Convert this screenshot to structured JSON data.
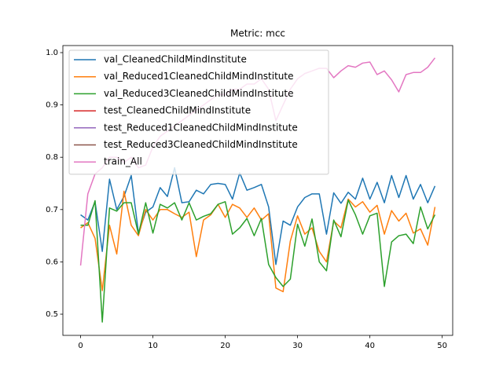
{
  "chart_data": {
    "type": "line",
    "title": "Metric: mcc",
    "x": [
      0,
      1,
      2,
      3,
      4,
      5,
      6,
      7,
      8,
      9,
      10,
      11,
      12,
      13,
      14,
      15,
      16,
      17,
      18,
      19,
      20,
      21,
      22,
      23,
      24,
      25,
      26,
      27,
      28,
      29,
      30,
      31,
      32,
      33,
      34,
      35,
      36,
      37,
      38,
      39,
      40,
      41,
      42,
      43,
      44,
      45,
      46,
      47,
      48,
      49
    ],
    "series": [
      {
        "name": "val_CleanedChildMindInstitute",
        "color": "#1f77b4",
        "values": [
          0.69,
          0.68,
          0.715,
          0.62,
          0.758,
          0.7,
          0.725,
          0.765,
          0.655,
          0.695,
          0.705,
          0.742,
          0.725,
          0.78,
          0.713,
          0.715,
          0.737,
          0.73,
          0.748,
          0.75,
          0.748,
          0.72,
          0.77,
          0.737,
          0.742,
          0.748,
          0.705,
          0.595,
          0.678,
          0.67,
          0.705,
          0.723,
          0.73,
          0.73,
          0.653,
          0.732,
          0.712,
          0.733,
          0.72,
          0.76,
          0.72,
          0.752,
          0.713,
          0.765,
          0.723,
          0.765,
          0.72,
          0.748,
          0.713,
          0.745
        ]
      },
      {
        "name": "val_Reduced1CleanedChildMindInstitute",
        "color": "#ff7f0e",
        "values": [
          0.665,
          0.675,
          0.645,
          0.545,
          0.67,
          0.615,
          0.735,
          0.67,
          0.65,
          0.7,
          0.68,
          0.7,
          0.7,
          0.692,
          0.685,
          0.695,
          0.61,
          0.68,
          0.69,
          0.71,
          0.685,
          0.71,
          0.703,
          0.685,
          0.703,
          0.68,
          0.692,
          0.55,
          0.543,
          0.64,
          0.688,
          0.653,
          0.665,
          0.62,
          0.6,
          0.678,
          0.665,
          0.72,
          0.705,
          0.715,
          0.695,
          0.708,
          0.653,
          0.698,
          0.678,
          0.693,
          0.655,
          0.663,
          0.632,
          0.705
        ]
      },
      {
        "name": "val_Reduced3CleanedChildMindInstitute",
        "color": "#2ca02c",
        "values": [
          0.67,
          0.67,
          0.717,
          0.485,
          0.703,
          0.697,
          0.713,
          0.713,
          0.653,
          0.713,
          0.655,
          0.71,
          0.703,
          0.713,
          0.68,
          0.713,
          0.68,
          0.687,
          0.692,
          0.71,
          0.715,
          0.653,
          0.665,
          0.683,
          0.65,
          0.683,
          0.595,
          0.57,
          0.553,
          0.567,
          0.672,
          0.63,
          0.682,
          0.6,
          0.583,
          0.68,
          0.648,
          0.718,
          0.69,
          0.653,
          0.688,
          0.693,
          0.553,
          0.638,
          0.65,
          0.653,
          0.635,
          0.705,
          0.663,
          0.69
        ]
      },
      {
        "name": "test_CleanedChildMindInstitute",
        "color": "#d62728",
        "values": [
          null,
          null,
          null,
          null,
          null,
          null,
          null,
          null,
          null,
          null,
          null,
          null,
          null,
          null,
          null,
          null,
          null,
          null,
          null,
          null,
          null,
          null,
          null,
          null,
          null,
          null,
          null,
          null,
          null,
          null,
          null,
          null,
          null,
          null,
          null,
          null,
          null,
          null,
          null,
          null,
          null,
          null,
          null,
          null,
          null,
          null,
          null,
          null,
          null,
          null
        ]
      },
      {
        "name": "test_Reduced1CleanedChildMindInstitute",
        "color": "#9467bd",
        "values": [
          null,
          null,
          null,
          null,
          null,
          null,
          null,
          null,
          null,
          null,
          null,
          null,
          null,
          null,
          null,
          null,
          null,
          null,
          null,
          null,
          null,
          null,
          null,
          null,
          null,
          null,
          null,
          null,
          null,
          null,
          null,
          null,
          null,
          null,
          null,
          null,
          null,
          null,
          null,
          null,
          null,
          null,
          null,
          null,
          null,
          null,
          null,
          null,
          null,
          null
        ]
      },
      {
        "name": "test_Reduced3CleanedChildMindInstitute",
        "color": "#8c564b",
        "values": [
          null,
          null,
          null,
          null,
          null,
          null,
          null,
          null,
          null,
          null,
          null,
          null,
          null,
          null,
          null,
          null,
          null,
          null,
          null,
          null,
          null,
          null,
          null,
          null,
          null,
          null,
          null,
          null,
          null,
          null,
          null,
          null,
          null,
          null,
          null,
          null,
          null,
          null,
          null,
          null,
          null,
          null,
          null,
          null,
          null,
          null,
          null,
          null,
          null,
          null
        ]
      },
      {
        "name": "train_All",
        "color": "#e377c2",
        "values": [
          0.593,
          0.73,
          0.768,
          0.78,
          0.8,
          0.8,
          0.79,
          0.8,
          0.78,
          0.785,
          0.82,
          0.84,
          0.85,
          0.86,
          0.87,
          0.88,
          0.89,
          0.9,
          0.91,
          0.92,
          0.92,
          0.93,
          0.93,
          0.94,
          0.94,
          0.95,
          0.93,
          0.87,
          0.9,
          0.93,
          0.95,
          0.96,
          0.965,
          0.97,
          0.97,
          0.952,
          0.965,
          0.975,
          0.972,
          0.98,
          0.982,
          0.958,
          0.965,
          0.948,
          0.925,
          0.958,
          0.962,
          0.962,
          0.972,
          0.99
        ]
      }
    ],
    "xlim": [
      -2.45,
      51.45
    ],
    "xticks": [
      0,
      10,
      20,
      30,
      40,
      50
    ],
    "ylim": [
      0.4595,
      1.0135
    ],
    "yticks": [
      0.5,
      0.6,
      0.7,
      0.8,
      0.9,
      {
        "value": 1,
        "label": "1.0"
      }
    ],
    "legend": "upper left"
  }
}
